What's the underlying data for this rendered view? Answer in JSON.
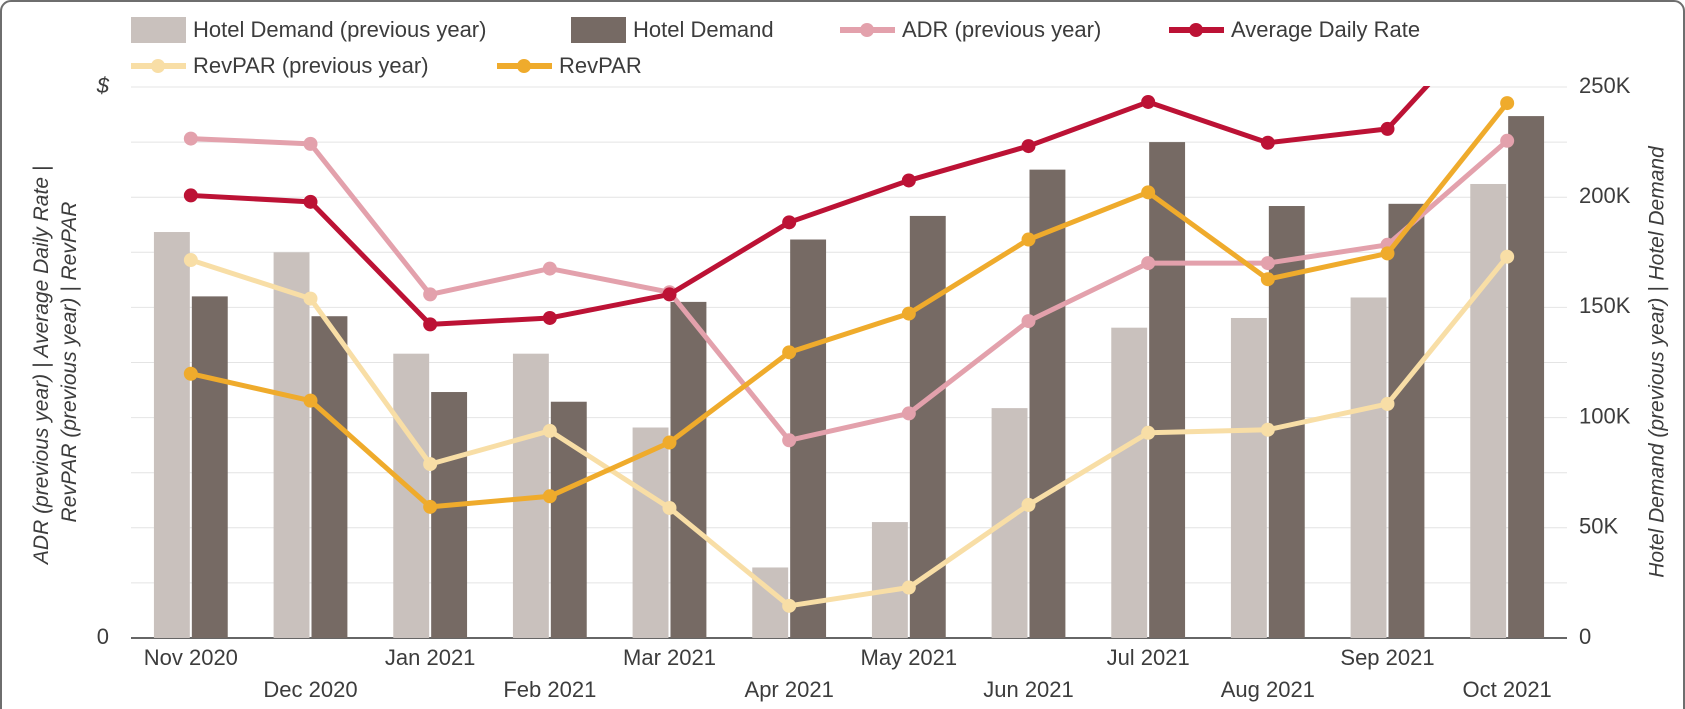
{
  "chart_data": {
    "type": "bar_line",
    "y_axis_label": "ADR (previous year) | Average Daily Rate | RevPAR (previous year) | RevPAR",
    "y2_axis_label": "Hotel Demand (previous year) | Hotel Demand",
    "categories": [
      "Nov 2020",
      "Dec 2020",
      "Jan 2021",
      "Feb 2021",
      "Mar 2021",
      "Apr 2021",
      "May 2021",
      "Jun 2021",
      "Jul 2021",
      "Aug 2021",
      "Sep 2021",
      "Oct 2021"
    ],
    "ylim": [
      0,
      250
    ],
    "yticks": [
      0,
      {
        "value": 250,
        "label": "$"
      }
    ],
    "y2lim": [
      0,
      250000
    ],
    "y2ticks": [
      {
        "value": 0,
        "label": "0"
      },
      {
        "value": 50000,
        "label": "50K"
      },
      {
        "value": 100000,
        "label": "100K"
      },
      {
        "value": 150000,
        "label": "150K"
      },
      {
        "value": 200000,
        "label": "200K"
      },
      {
        "value": 250000,
        "label": "250K"
      }
    ],
    "grid": true,
    "series": [
      {
        "name": "Hotel Demand (previous year)",
        "type": "bar",
        "axis": "y2",
        "color": "#c9c1bd",
        "values": [
          184200,
          175000,
          129000,
          129000,
          95500,
          32000,
          52600,
          104300,
          140800,
          145200,
          154500,
          206000
        ]
      },
      {
        "name": "Hotel Demand",
        "type": "bar",
        "axis": "y2",
        "color": "#766a64",
        "values": [
          155000,
          146000,
          111600,
          107200,
          152500,
          180800,
          191500,
          212500,
          225000,
          196000,
          197000,
          236800
        ]
      },
      {
        "name": "ADR (previous year)",
        "type": "line",
        "color": "#e3a1ac",
        "values": [
          226.6,
          224.2,
          155.9,
          167.6,
          156.9,
          89.7,
          101.9,
          143.8,
          170.1,
          170.1,
          178.4,
          225.6
        ]
      },
      {
        "name": "Average Daily Rate",
        "type": "line",
        "color": "#bc1235",
        "values": [
          200.8,
          197.9,
          142.3,
          145.2,
          155.9,
          188.6,
          207.6,
          223.2,
          243.2,
          224.7,
          231,
          290
        ]
      },
      {
        "name": "RevPAR (previous year)",
        "type": "line",
        "color": "#f8dea6",
        "values": [
          171.5,
          154,
          78.9,
          94,
          59,
          14.6,
          22.9,
          60.4,
          93.1,
          94.5,
          106.2,
          173
        ]
      },
      {
        "name": "RevPAR",
        "type": "line",
        "color": "#efab2c",
        "values": [
          119.9,
          107.7,
          59.5,
          64.3,
          88.7,
          129.6,
          147.2,
          180.8,
          202.2,
          162.8,
          174.5,
          242.7
        ]
      }
    ]
  }
}
